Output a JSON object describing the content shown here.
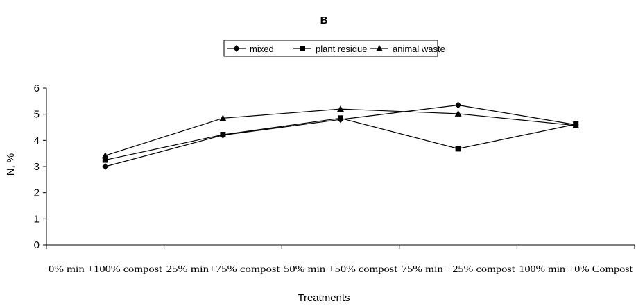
{
  "chart_data": {
    "type": "line",
    "title": "B",
    "xlabel": "Treatments",
    "ylabel": "N, %",
    "ylim": [
      0,
      6
    ],
    "yticks": [
      0,
      1,
      2,
      3,
      4,
      5,
      6
    ],
    "categories": [
      "0% min +100% compost",
      "25% min+75% compost",
      "50% min +50% compost",
      "75% min +25% compost",
      "100% min +0% Compost"
    ],
    "series": [
      {
        "name": "mixed",
        "marker": "diamond",
        "values": [
          3.0,
          4.2,
          4.8,
          5.35,
          4.6
        ]
      },
      {
        "name": "plant residue",
        "marker": "square",
        "values": [
          3.25,
          4.22,
          4.85,
          3.68,
          4.62
        ]
      },
      {
        "name": "animal waste",
        "marker": "triangle",
        "values": [
          3.42,
          4.85,
          5.2,
          5.02,
          4.57
        ]
      }
    ],
    "legend_position": "top-center",
    "grid": false,
    "line_color": "#000000"
  }
}
